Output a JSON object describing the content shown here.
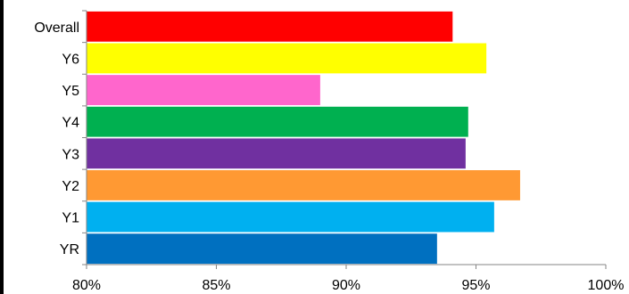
{
  "chart_data": {
    "type": "bar",
    "orientation": "horizontal",
    "title": "",
    "xlabel": "",
    "ylabel": "",
    "categories": [
      "Overall",
      "Y6",
      "Y5",
      "Y4",
      "Y3",
      "Y2",
      "Y1",
      "YR"
    ],
    "values": [
      94.1,
      95.4,
      89.0,
      94.7,
      94.6,
      96.7,
      95.7,
      93.5
    ],
    "colors": [
      "#ff0000",
      "#ffff00",
      "#ff66cc",
      "#00b050",
      "#7030a0",
      "#ff9933",
      "#00b0f0",
      "#0070c0"
    ],
    "xlim": [
      80,
      100
    ],
    "x_ticks": [
      80,
      85,
      90,
      95,
      100
    ],
    "x_tick_labels": [
      "80%",
      "85%",
      "90%",
      "95%",
      "100%"
    ],
    "grid": false,
    "legend": "none"
  }
}
